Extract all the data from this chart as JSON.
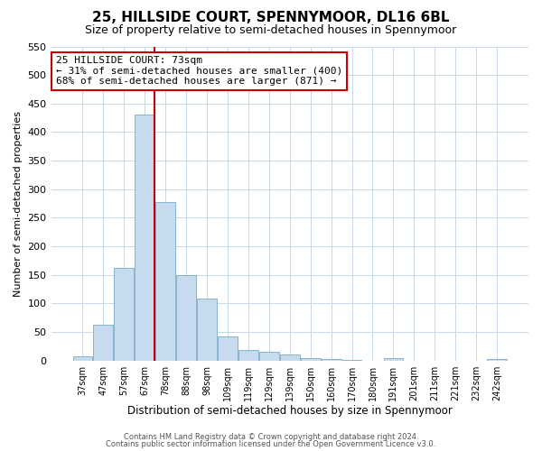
{
  "title": "25, HILLSIDE COURT, SPENNYMOOR, DL16 6BL",
  "subtitle": "Size of property relative to semi-detached houses in Spennymoor",
  "xlabel": "Distribution of semi-detached houses by size in Spennymoor",
  "ylabel": "Number of semi-detached properties",
  "footer1": "Contains HM Land Registry data © Crown copyright and database right 2024.",
  "footer2": "Contains public sector information licensed under the Open Government Licence v3.0.",
  "annotation_title": "25 HILLSIDE COURT: 73sqm",
  "annotation_line1": "← 31% of semi-detached houses are smaller (400)",
  "annotation_line2": "68% of semi-detached houses are larger (871) →",
  "bar_labels": [
    "37sqm",
    "47sqm",
    "57sqm",
    "67sqm",
    "78sqm",
    "88sqm",
    "98sqm",
    "109sqm",
    "119sqm",
    "129sqm",
    "139sqm",
    "150sqm",
    "160sqm",
    "170sqm",
    "180sqm",
    "191sqm",
    "201sqm",
    "211sqm",
    "221sqm",
    "232sqm",
    "242sqm"
  ],
  "bar_values": [
    8,
    62,
    162,
    430,
    278,
    150,
    108,
    42,
    18,
    16,
    10,
    5,
    2,
    1,
    0,
    5,
    0,
    0,
    0,
    0,
    2
  ],
  "bar_color": "#c6dcee",
  "bar_edge_color": "#7aaac8",
  "vline_x": 3.45,
  "ylim": [
    0,
    550
  ],
  "yticks": [
    0,
    50,
    100,
    150,
    200,
    250,
    300,
    350,
    400,
    450,
    500,
    550
  ],
  "background_color": "#ffffff",
  "grid_color": "#c8d8e8",
  "annotation_box_edge": "#cc0000",
  "vline_color": "#cc0000",
  "title_fontsize": 11,
  "subtitle_fontsize": 9
}
